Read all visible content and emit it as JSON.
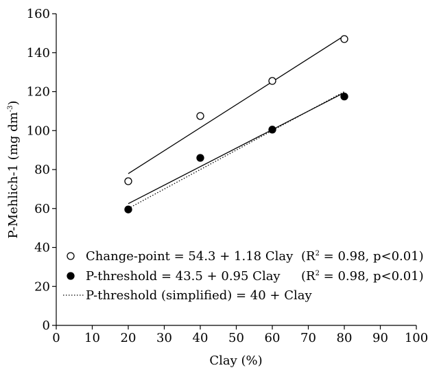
{
  "chart_data": {
    "type": "scatter",
    "xlabel": "Clay (%)",
    "ylabel_main": "P-Mehlich-1 (mg dm",
    "ylabel_sup": "-3",
    "ylabel_close": ")",
    "xlim": [
      0,
      100
    ],
    "ylim": [
      0,
      160
    ],
    "xticks": [
      0,
      10,
      20,
      30,
      40,
      50,
      60,
      70,
      80,
      90,
      100
    ],
    "yticks": [
      0,
      20,
      40,
      60,
      80,
      100,
      120,
      140,
      160
    ],
    "grid": false,
    "legend_position": "bottom-left inside",
    "series": [
      {
        "name": "Change-point",
        "marker": "open-circle",
        "points": [
          [
            20,
            74
          ],
          [
            40,
            107.5
          ],
          [
            60,
            125.5
          ],
          [
            80,
            147
          ]
        ],
        "fit": {
          "intercept": 54.3,
          "slope": 1.18,
          "x_range": [
            20,
            80
          ],
          "style": "solid"
        },
        "legend_label": "Change-point = 54.3 + 1.18 Clay",
        "legend_stat_pre": "(R",
        "legend_stat_sup": "2",
        "legend_stat_post": " = 0.98, p<0.01)"
      },
      {
        "name": "P-threshold",
        "marker": "filled-circle",
        "points": [
          [
            20,
            59.5
          ],
          [
            40,
            86
          ],
          [
            60,
            100.5
          ],
          [
            80,
            117.5
          ]
        ],
        "fit": {
          "intercept": 43.5,
          "slope": 0.95,
          "x_range": [
            20,
            80
          ],
          "style": "solid"
        },
        "legend_label": "P-threshold = 43.5 + 0.95 Clay",
        "legend_stat_pre": "(R",
        "legend_stat_sup": "2",
        "legend_stat_post": " = 0.98, p<0.01)"
      },
      {
        "name": "P-threshold (simplified)",
        "marker": "none",
        "fit": {
          "intercept": 40,
          "slope": 1,
          "x_range": [
            20,
            80
          ],
          "style": "dotted"
        },
        "legend_label": "P-threshold (simplified) = 40 + Clay"
      }
    ]
  }
}
